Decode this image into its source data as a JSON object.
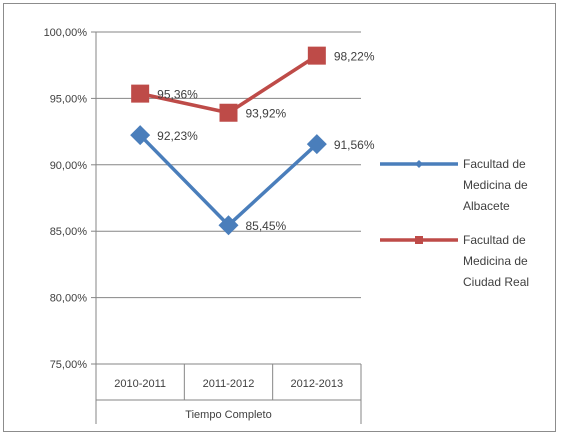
{
  "chart_data": {
    "type": "line",
    "categories": [
      "2010-2011",
      "2011-2012",
      "2012-2013"
    ],
    "xlabel": "Tiempo Completo",
    "ylim": [
      75,
      100
    ],
    "yticks": [
      "75,00%",
      "80,00%",
      "85,00%",
      "90,00%",
      "95,00%",
      "100,00%"
    ],
    "grid": true,
    "legend_position": "right",
    "series": [
      {
        "name": "Facultad de Medicina de Albacete",
        "name_lines": [
          "Facultad de",
          "Medicina de",
          "Albacete"
        ],
        "values": [
          92.23,
          85.45,
          91.56
        ],
        "labels": [
          "92,23%",
          "85,45%",
          "91,56%"
        ],
        "color": "#4a7ebb",
        "marker": "diamond"
      },
      {
        "name": "Facultad de Medicina de Ciudad Real",
        "name_lines": [
          "Facultad de",
          "Medicina de",
          "Ciudad Real"
        ],
        "values": [
          95.36,
          93.92,
          98.22
        ],
        "labels": [
          "95,36%",
          "93,92%",
          "98,22%"
        ],
        "color": "#be4b48",
        "marker": "square"
      }
    ]
  }
}
